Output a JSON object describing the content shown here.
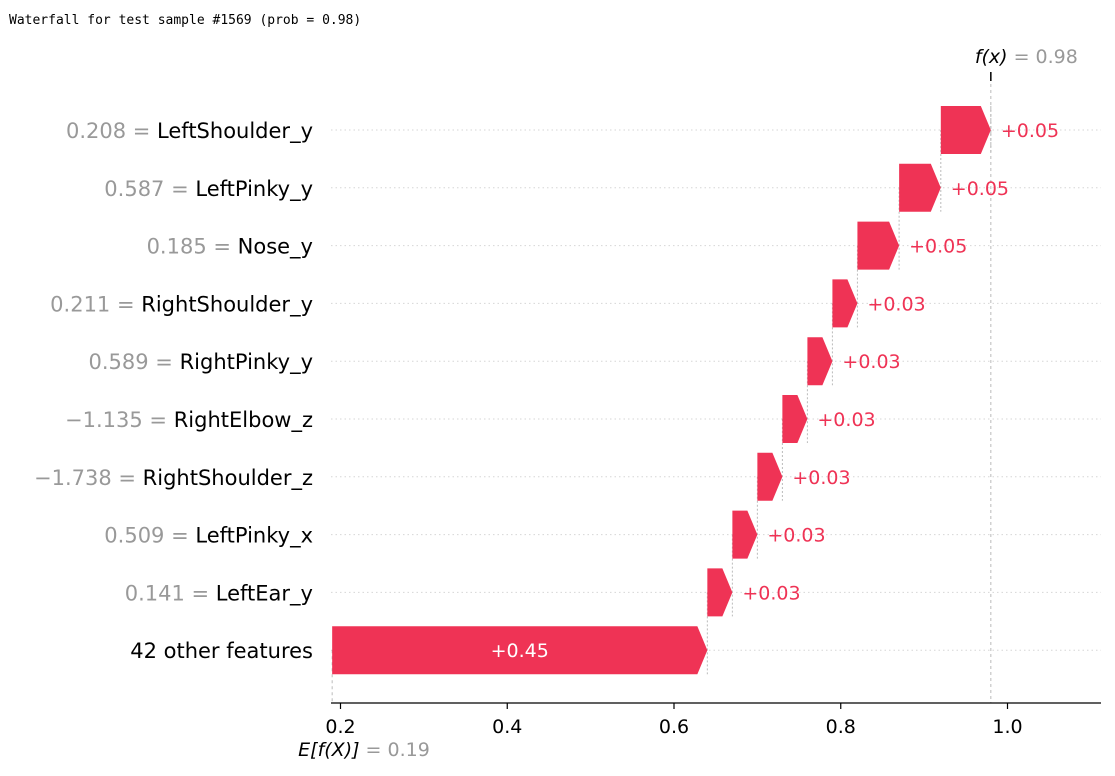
{
  "title": "Waterfall for test sample #1569 (prob = 0.98)",
  "chart_data": {
    "type": "waterfall",
    "base_value": 0.19,
    "output_value": 0.98,
    "fx_label": "f(x)",
    "fx_value_text": "= 0.98",
    "efx_label": "E[f(X)]",
    "efx_value_text": "= 0.19",
    "xlim": [
      0.19,
      1.12
    ],
    "xticks": [
      0.2,
      0.4,
      0.6,
      0.8,
      1.0
    ],
    "xtick_labels": [
      "0.2",
      "0.4",
      "0.6",
      "0.8",
      "1.0"
    ],
    "positive_color": "#ef3355",
    "features": [
      {
        "value": "0.208",
        "name": "LeftShoulder_y",
        "contribution": 0.05,
        "label": "+0.05"
      },
      {
        "value": "0.587",
        "name": "LeftPinky_y",
        "contribution": 0.05,
        "label": "+0.05"
      },
      {
        "value": "0.185",
        "name": "Nose_y",
        "contribution": 0.05,
        "label": "+0.05"
      },
      {
        "value": "0.211",
        "name": "RightShoulder_y",
        "contribution": 0.03,
        "label": "+0.03"
      },
      {
        "value": "0.589",
        "name": "RightPinky_y",
        "contribution": 0.03,
        "label": "+0.03"
      },
      {
        "value": "−1.135",
        "name": "RightElbow_z",
        "contribution": 0.03,
        "label": "+0.03"
      },
      {
        "value": "−1.738",
        "name": "RightShoulder_z",
        "contribution": 0.03,
        "label": "+0.03"
      },
      {
        "value": "0.509",
        "name": "LeftPinky_x",
        "contribution": 0.03,
        "label": "+0.03"
      },
      {
        "value": "0.141",
        "name": "LeftEar_y",
        "contribution": 0.03,
        "label": "+0.03"
      },
      {
        "value": "",
        "name": "42 other features",
        "contribution": 0.45,
        "label": "+0.45"
      }
    ]
  }
}
